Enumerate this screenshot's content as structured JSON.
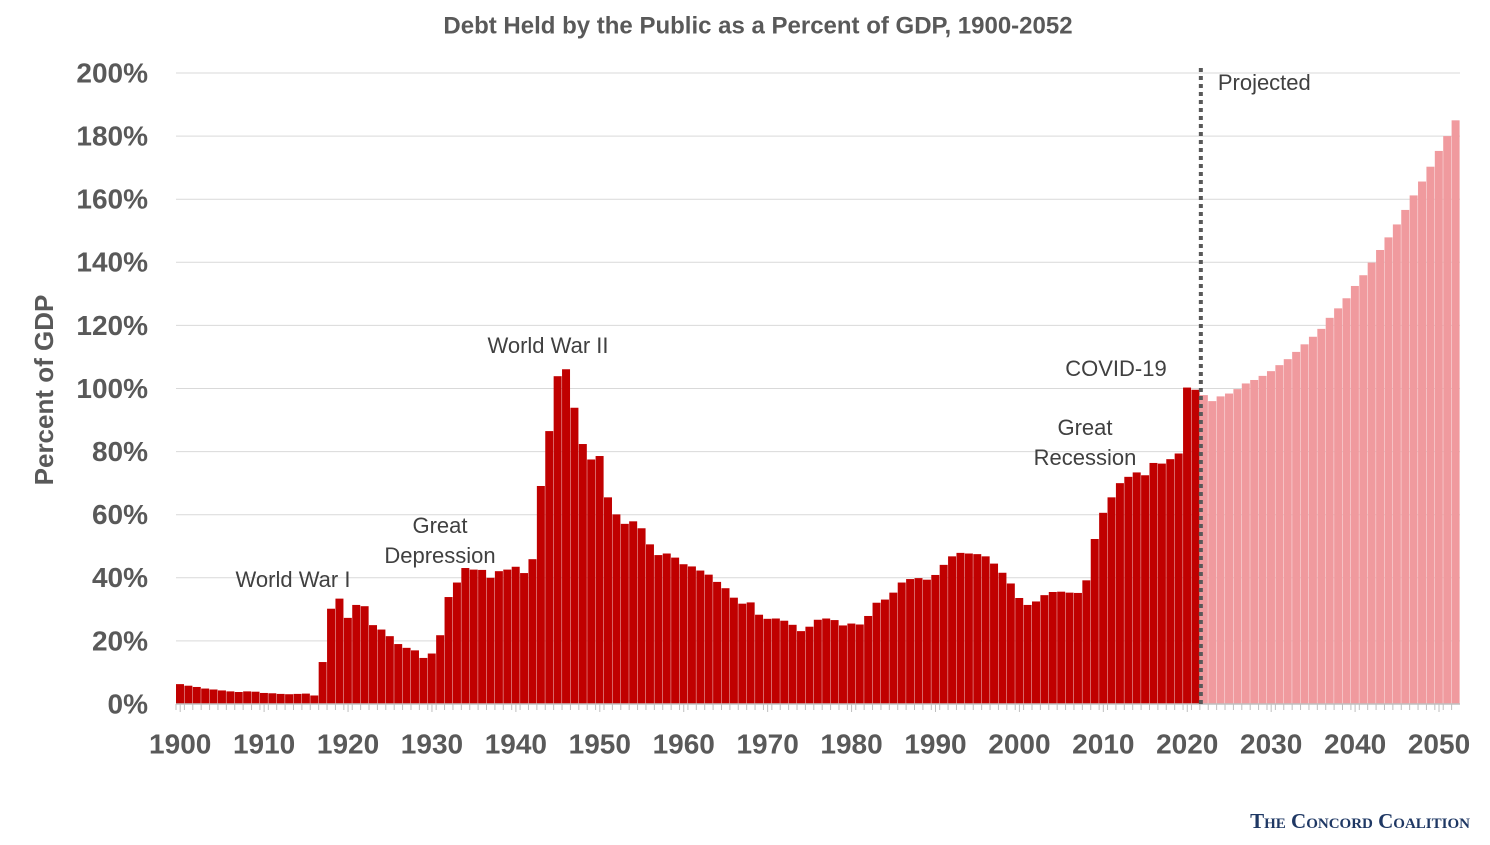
{
  "chart_data": {
    "type": "bar",
    "title": "Debt Held by the Public as a Percent of GDP, 1900-2052",
    "y_label": "Percent of GDP",
    "x": [
      1900,
      1901,
      1902,
      1903,
      1904,
      1905,
      1906,
      1907,
      1908,
      1909,
      1910,
      1911,
      1912,
      1913,
      1914,
      1915,
      1916,
      1917,
      1918,
      1919,
      1920,
      1921,
      1922,
      1923,
      1924,
      1925,
      1926,
      1927,
      1928,
      1929,
      1930,
      1931,
      1932,
      1933,
      1934,
      1935,
      1936,
      1937,
      1938,
      1939,
      1940,
      1941,
      1942,
      1943,
      1944,
      1945,
      1946,
      1947,
      1948,
      1949,
      1950,
      1951,
      1952,
      1953,
      1954,
      1955,
      1956,
      1957,
      1958,
      1959,
      1960,
      1961,
      1962,
      1963,
      1964,
      1965,
      1966,
      1967,
      1968,
      1969,
      1970,
      1971,
      1972,
      1973,
      1974,
      1975,
      1976,
      1977,
      1978,
      1979,
      1980,
      1981,
      1982,
      1983,
      1984,
      1985,
      1986,
      1987,
      1988,
      1989,
      1990,
      1991,
      1992,
      1993,
      1994,
      1995,
      1996,
      1997,
      1998,
      1999,
      2000,
      2001,
      2002,
      2003,
      2004,
      2005,
      2006,
      2007,
      2008,
      2009,
      2010,
      2011,
      2012,
      2013,
      2014,
      2015,
      2016,
      2017,
      2018,
      2019,
      2020,
      2021,
      2022,
      2023,
      2024,
      2025,
      2026,
      2027,
      2028,
      2029,
      2030,
      2031,
      2032,
      2033,
      2034,
      2035,
      2036,
      2037,
      2038,
      2039,
      2040,
      2041,
      2042,
      2043,
      2044,
      2045,
      2046,
      2047,
      2048,
      2049,
      2050,
      2051,
      2052
    ],
    "series": [
      {
        "color": "#c00000",
        "values": [
          6.3,
          5.8,
          5.4,
          4.9,
          4.6,
          4.3,
          4.0,
          3.8,
          4.0,
          3.9,
          3.5,
          3.4,
          3.2,
          3.1,
          3.2,
          3.3,
          2.7,
          13.3,
          30.2,
          33.4,
          27.3,
          31.4,
          31.0,
          25.0,
          23.6,
          21.5,
          19.0,
          17.8,
          17.0,
          14.6,
          16.0,
          21.8,
          33.9,
          38.5,
          43.1,
          42.6,
          42.5,
          40.0,
          42.1,
          42.6,
          43.5,
          41.5,
          45.9,
          69.1,
          86.5,
          103.9,
          106.1,
          93.9,
          82.4,
          77.5,
          78.6,
          65.5,
          60.1,
          57.1,
          57.9,
          55.7,
          50.6,
          47.2,
          47.7,
          46.4,
          44.3,
          43.6,
          42.3,
          41.0,
          38.7,
          36.7,
          33.7,
          31.8,
          32.2,
          28.3,
          27.0,
          27.1,
          26.4,
          25.1,
          23.1,
          24.5,
          26.7,
          27.1,
          26.6,
          24.9,
          25.5,
          25.2,
          27.9,
          32.1,
          33.1,
          35.3,
          38.5,
          39.6,
          39.9,
          39.4,
          40.9,
          44.1,
          46.8,
          47.9,
          47.7,
          47.5,
          46.8,
          44.5,
          41.6,
          38.2,
          33.6,
          31.4,
          32.5,
          34.5,
          35.5,
          35.6,
          35.3,
          35.2,
          39.2,
          52.3,
          60.6,
          65.5,
          70.0,
          72.0,
          73.4,
          72.5,
          76.4,
          76.2,
          77.6,
          79.4,
          100.3,
          99.6,
          null,
          null,
          null,
          null,
          null,
          null,
          null,
          null,
          null,
          null,
          null,
          null,
          null,
          null,
          null,
          null,
          null,
          null,
          null,
          null,
          null,
          null,
          null,
          null,
          null,
          null,
          null,
          null,
          null,
          null,
          null
        ]
      },
      {
        "name": "Projected",
        "color": "#f09a9e",
        "values": [
          null,
          null,
          null,
          null,
          null,
          null,
          null,
          null,
          null,
          null,
          null,
          null,
          null,
          null,
          null,
          null,
          null,
          null,
          null,
          null,
          null,
          null,
          null,
          null,
          null,
          null,
          null,
          null,
          null,
          null,
          null,
          null,
          null,
          null,
          null,
          null,
          null,
          null,
          null,
          null,
          null,
          null,
          null,
          null,
          null,
          null,
          null,
          null,
          null,
          null,
          null,
          null,
          null,
          null,
          null,
          null,
          null,
          null,
          null,
          null,
          null,
          null,
          null,
          null,
          null,
          null,
          null,
          null,
          null,
          null,
          null,
          null,
          null,
          null,
          null,
          null,
          null,
          null,
          null,
          null,
          null,
          null,
          null,
          null,
          null,
          null,
          null,
          null,
          null,
          null,
          null,
          null,
          null,
          null,
          null,
          null,
          null,
          null,
          null,
          null,
          null,
          null,
          null,
          null,
          null,
          null,
          null,
          null,
          null,
          null,
          null,
          null,
          null,
          null,
          null,
          null,
          null,
          null,
          null,
          null,
          null,
          null,
          97.9,
          96.0,
          97.5,
          98.4,
          99.8,
          101.6,
          102.7,
          104.0,
          105.5,
          107.4,
          109.3,
          111.6,
          114.0,
          116.4,
          118.9,
          122.4,
          125.4,
          128.6,
          132.5,
          135.9,
          139.9,
          143.9,
          147.9,
          152.0,
          156.6,
          161.2,
          165.6,
          170.3,
          175.3,
          180.0,
          185.0
        ]
      }
    ],
    "xlim": [
      1899.5,
      2052.5
    ],
    "xticks": [
      1900,
      1910,
      1920,
      1930,
      1940,
      1950,
      1960,
      1970,
      1980,
      1990,
      2000,
      2010,
      2020,
      2030,
      2040,
      2050
    ],
    "ylim": [
      0,
      200
    ],
    "yticks": [
      {
        "value": 0,
        "label": "0%"
      },
      {
        "value": 20,
        "label": "20%"
      },
      {
        "value": 40,
        "label": "40%"
      },
      {
        "value": 60,
        "label": "60%"
      },
      {
        "value": 80,
        "label": "80%"
      },
      {
        "value": 100,
        "label": "100%"
      },
      {
        "value": 120,
        "label": "120%"
      },
      {
        "value": 140,
        "label": "140%"
      },
      {
        "value": 160,
        "label": "160%"
      },
      {
        "value": 180,
        "label": "180%"
      },
      {
        "value": 200,
        "label": "200%"
      }
    ],
    "grid": true,
    "annotations": [
      {
        "lines": [
          "World War I"
        ]
      },
      {
        "lines": [
          "Great",
          "Depression"
        ]
      },
      {
        "lines": [
          "World War II"
        ]
      },
      {
        "lines": [
          "Great",
          "Recession"
        ]
      },
      {
        "lines": [
          "COVID-19"
        ]
      }
    ],
    "source": "The Concord Coalition"
  }
}
